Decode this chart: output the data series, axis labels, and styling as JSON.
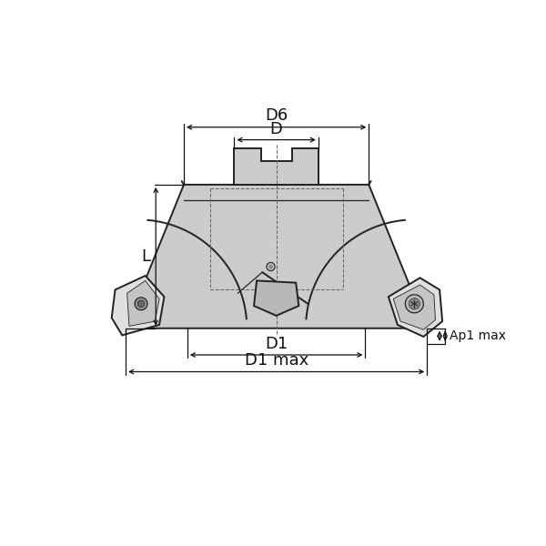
{
  "bg_color": "#ffffff",
  "outline_color": "#222222",
  "fill_color": "#cccccc",
  "fill_light": "#e0e0e0",
  "fill_dark": "#aaaaaa",
  "dashed_color": "#666666",
  "dim_color": "#111111",
  "fig_width": 6.0,
  "fig_height": 6.0,
  "labels": {
    "D6": "D6",
    "D": "D",
    "L": "L",
    "D1": "D1",
    "D1max": "D1 max",
    "Ap1max": "Ap1 max"
  }
}
